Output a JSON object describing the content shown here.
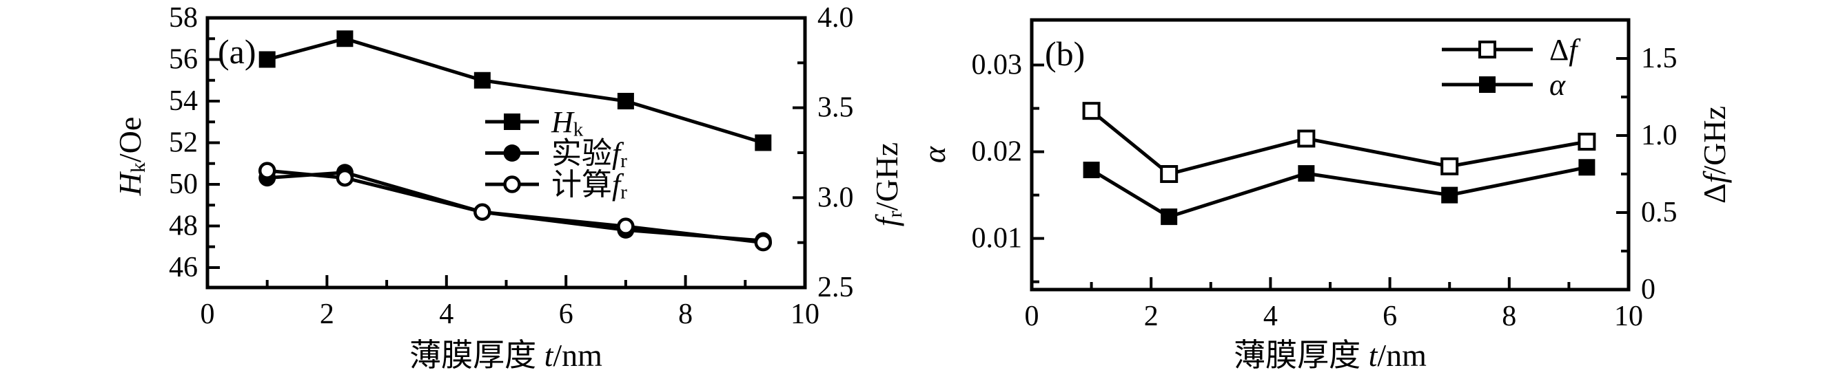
{
  "figure": {
    "background": "#ffffff",
    "ink": "#000000"
  },
  "chart_data": [
    {
      "type": "line",
      "name": "panel-a",
      "panel_label": "(a)",
      "x": [
        1,
        2.3,
        4.6,
        7,
        9.3
      ],
      "xlim": [
        0,
        10
      ],
      "xticks": [
        {
          "v": 0,
          "label": "0"
        },
        {
          "v": 2,
          "label": "2"
        },
        {
          "v": 4,
          "label": "4"
        },
        {
          "v": 6,
          "label": "6"
        },
        {
          "v": 8,
          "label": "8"
        },
        {
          "v": 10,
          "label": "10"
        }
      ],
      "xminor": [
        1,
        3,
        5,
        7,
        9
      ],
      "xlabel_parts": [
        {
          "text": "薄膜厚度 "
        },
        {
          "text": "t",
          "italic": true
        },
        {
          "text": "/nm"
        }
      ],
      "left_axis": {
        "lim": [
          45.04,
          58
        ],
        "ticks": [
          {
            "v": 46,
            "label": "46"
          },
          {
            "v": 48,
            "label": "48"
          },
          {
            "v": 50,
            "label": "50"
          },
          {
            "v": 52,
            "label": "52"
          },
          {
            "v": 54,
            "label": "54"
          },
          {
            "v": 56,
            "label": "56"
          },
          {
            "v": 58,
            "label": "58"
          }
        ],
        "minor": [
          47,
          49,
          51,
          53,
          55,
          57
        ],
        "label_parts": [
          {
            "text": "H",
            "italic": true
          },
          {
            "text": "k",
            "sub": true
          },
          {
            "text": "/Oe"
          }
        ]
      },
      "right_axis": {
        "lim": [
          2.5,
          4.0
        ],
        "ticks": [
          {
            "v": 2.5,
            "label": "2.5"
          },
          {
            "v": 3.0,
            "label": "3.0"
          },
          {
            "v": 3.5,
            "label": "3.5"
          },
          {
            "v": 4.0,
            "label": "4.0"
          }
        ],
        "minor": [
          2.75,
          3.25,
          3.75
        ],
        "label_parts": [
          {
            "text": "f",
            "italic": true
          },
          {
            "text": "r",
            "sub": true
          },
          {
            "text": "/GHz"
          }
        ]
      },
      "series": [
        {
          "name": "Hk",
          "axis": "left",
          "marker": "filled-square",
          "values": [
            56,
            57,
            55,
            54,
            52
          ],
          "legend_parts": [
            {
              "text": "H",
              "italic": true
            },
            {
              "text": "k",
              "sub": true
            }
          ]
        },
        {
          "name": "shiyan-fr",
          "axis": "right",
          "marker": "filled-circle",
          "values": [
            3.11,
            3.14,
            2.92,
            2.82,
            2.76
          ],
          "legend_parts": [
            {
              "text": "实验"
            },
            {
              "text": "f",
              "italic": true
            },
            {
              "text": "r",
              "sub": true
            }
          ]
        },
        {
          "name": "jisuan-fr",
          "axis": "right",
          "marker": "open-circle",
          "values": [
            3.15,
            3.11,
            2.92,
            2.84,
            2.75
          ],
          "legend_parts": [
            {
              "text": "计算"
            },
            {
              "text": "f",
              "italic": true
            },
            {
              "text": "r",
              "sub": true
            }
          ]
        }
      ]
    },
    {
      "type": "line",
      "name": "panel-b",
      "panel_label": "(b)",
      "x": [
        1,
        2.3,
        4.6,
        7,
        9.3
      ],
      "xlim": [
        0,
        10
      ],
      "xticks": [
        {
          "v": 0,
          "label": "0"
        },
        {
          "v": 2,
          "label": "2"
        },
        {
          "v": 4,
          "label": "4"
        },
        {
          "v": 6,
          "label": "6"
        },
        {
          "v": 8,
          "label": "8"
        },
        {
          "v": 10,
          "label": "10"
        }
      ],
      "xminor": [
        1,
        3,
        5,
        7,
        9
      ],
      "xlabel_parts": [
        {
          "text": "薄膜厚度 "
        },
        {
          "text": "t",
          "italic": true
        },
        {
          "text": "/nm"
        }
      ],
      "left_axis": {
        "lim": [
          0.0041,
          0.0352
        ],
        "ticks": [
          {
            "v": 0.01,
            "label": "0.01"
          },
          {
            "v": 0.02,
            "label": "0.02"
          },
          {
            "v": 0.03,
            "label": "0.03"
          }
        ],
        "minor": [
          0.005,
          0.015,
          0.025
        ],
        "label_parts": [
          {
            "text": "α",
            "italic": true
          }
        ]
      },
      "right_axis": {
        "lim": [
          0,
          1.75
        ],
        "ticks": [
          {
            "v": 0,
            "label": "0"
          },
          {
            "v": 0.5,
            "label": "0.5"
          },
          {
            "v": 1.0,
            "label": "1.0"
          },
          {
            "v": 1.5,
            "label": "1.5"
          }
        ],
        "minor": [
          0.25,
          0.75,
          1.25
        ],
        "label_parts": [
          {
            "text": "Δ"
          },
          {
            "text": "f",
            "italic": true
          },
          {
            "text": "/GHz"
          }
        ]
      },
      "series": [
        {
          "name": "delta-f",
          "axis": "right",
          "marker": "open-square",
          "values": [
            1.16,
            0.75,
            0.98,
            0.8,
            0.96
          ],
          "legend_parts": [
            {
              "text": "Δ"
            },
            {
              "text": "f",
              "italic": true
            }
          ]
        },
        {
          "name": "alpha",
          "axis": "left",
          "marker": "filled-square",
          "values": [
            0.0179,
            0.0125,
            0.0175,
            0.015,
            0.0182
          ],
          "legend_parts": [
            {
              "text": "α",
              "italic": true
            }
          ]
        }
      ]
    }
  ]
}
